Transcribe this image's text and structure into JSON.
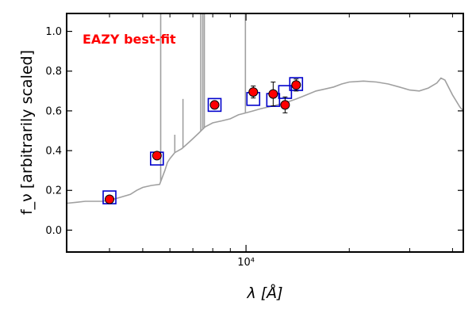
{
  "chart_data": {
    "type": "scatter",
    "xlabel": "λ [Å]",
    "ylabel": "f_ν [arbitrarily scaled]",
    "xscale": "log",
    "xlim": [
      3000,
      43000
    ],
    "ylim": [
      -0.11,
      1.09
    ],
    "yticks": [
      0.0,
      0.2,
      0.4,
      0.6,
      0.8,
      1.0
    ],
    "ytick_labels": [
      "0.0",
      "0.2",
      "0.4",
      "0.6",
      "0.8",
      "1.0"
    ],
    "xtick_major": [
      10000
    ],
    "xtick_major_labels": [
      "10⁴"
    ],
    "xtick_minor": [
      4000,
      5000,
      6000,
      7000,
      8000,
      9000,
      20000,
      30000,
      40000
    ],
    "grid": false,
    "legend": "none",
    "annotation": "EAZY best-fit",
    "annotation_color": "#ff0000",
    "series": [
      {
        "kind": "spectrum",
        "color": "#a0a0a0",
        "x": [
          3000,
          3200,
          3400,
          3600,
          3800,
          4000,
          4300,
          4600,
          4800,
          5000,
          5300,
          5600,
          5800,
          5900,
          6000,
          6200,
          6500,
          6800,
          7000,
          7300,
          7600,
          8000,
          8500,
          9000,
          9500,
          10000,
          10500,
          11000,
          12000,
          13000,
          14000,
          15000,
          16000,
          17000,
          18000,
          19000,
          20000,
          22000,
          24000,
          26000,
          28000,
          30000,
          32000,
          34000,
          36000,
          37000,
          38000,
          40000,
          42000,
          43000
        ],
        "y": [
          0.135,
          0.14,
          0.145,
          0.145,
          0.145,
          0.15,
          0.165,
          0.18,
          0.2,
          0.215,
          0.225,
          0.23,
          0.3,
          0.34,
          0.36,
          0.39,
          0.41,
          0.44,
          0.46,
          0.49,
          0.52,
          0.54,
          0.55,
          0.56,
          0.58,
          0.59,
          0.6,
          0.61,
          0.625,
          0.64,
          0.66,
          0.68,
          0.7,
          0.71,
          0.72,
          0.735,
          0.745,
          0.75,
          0.745,
          0.735,
          0.72,
          0.705,
          0.7,
          0.715,
          0.74,
          0.765,
          0.755,
          0.68,
          0.62,
          0.6
        ],
        "emission_lines": [
          {
            "x": 5640,
            "top": 1.09
          },
          {
            "x": 6200,
            "top": 0.48
          },
          {
            "x": 6550,
            "top": 0.66
          },
          {
            "x": 7380,
            "top": 1.09
          },
          {
            "x": 7480,
            "top": 1.09
          },
          {
            "x": 7560,
            "top": 1.09
          },
          {
            "x": 9960,
            "top": 1.09
          }
        ]
      },
      {
        "name": "",
        "kind": "model_photometry",
        "marker": "open-square",
        "color": "#0000cc",
        "x": [
          4000,
          5500,
          8100,
          10500,
          12000,
          13000,
          14000
        ],
        "y": [
          0.165,
          0.36,
          0.63,
          0.66,
          0.655,
          0.695,
          0.735
        ]
      },
      {
        "name": "",
        "kind": "observed_photometry",
        "marker": "filled-circle",
        "color": "#ff0000",
        "x": [
          4000,
          5500,
          8100,
          10500,
          12000,
          13000,
          14000
        ],
        "y": [
          0.155,
          0.375,
          0.63,
          0.695,
          0.685,
          0.63,
          0.73
        ],
        "yerr": [
          0.012,
          0.015,
          0.015,
          0.03,
          0.06,
          0.04,
          0.03
        ]
      }
    ]
  }
}
